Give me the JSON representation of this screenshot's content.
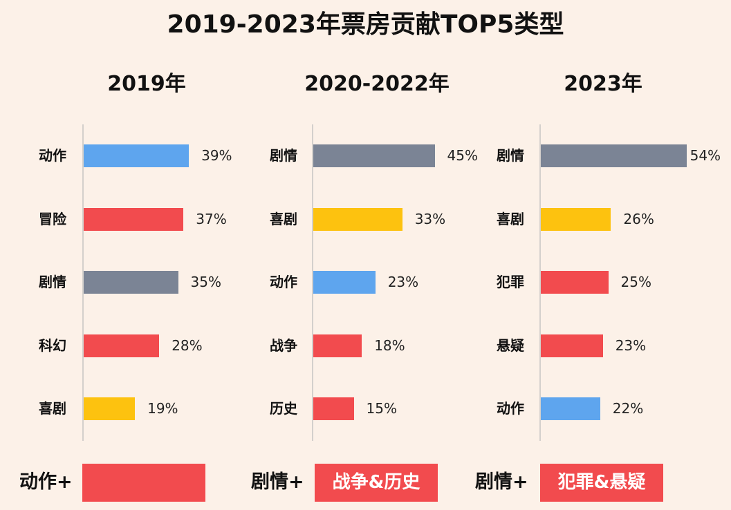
{
  "chart_data": {
    "type": "bar",
    "title": "2019-2023年票房贡献TOP5类型",
    "colors": {
      "动作": "#5ea5ee",
      "冒险": "#f24b4e",
      "剧情": "#7b8495",
      "科幻": "#f24b4e",
      "喜剧": "#fdc20f",
      "战争": "#f24b4e",
      "历史": "#f24b4e",
      "犯罪": "#f24b4e",
      "悬疑": "#f24b4e"
    },
    "panels": [
      {
        "title": "2019年",
        "categories": [
          "动作",
          "冒险",
          "剧情",
          "科幻",
          "喜剧"
        ],
        "values": [
          39,
          37,
          35,
          28,
          19
        ],
        "value_labels": [
          "39%",
          "37%",
          "35%",
          "28%",
          "19%"
        ],
        "footer_prefix": "动作+",
        "footer_box": ""
      },
      {
        "title": "2020-2022年",
        "categories": [
          "剧情",
          "喜剧",
          "动作",
          "战争",
          "历史"
        ],
        "values": [
          45,
          33,
          23,
          18,
          15
        ],
        "value_labels": [
          "45%",
          "33%",
          "23%",
          "18%",
          "15%"
        ],
        "footer_prefix": "剧情+",
        "footer_box": "战争&历史"
      },
      {
        "title": "2023年",
        "categories": [
          "剧情",
          "喜剧",
          "犯罪",
          "悬疑",
          "动作"
        ],
        "values": [
          54,
          26,
          25,
          23,
          22
        ],
        "value_labels": [
          "54%",
          "26%",
          "25%",
          "23%",
          "22%"
        ],
        "footer_prefix": "剧情+",
        "footer_box": "犯罪&悬疑"
      }
    ]
  }
}
